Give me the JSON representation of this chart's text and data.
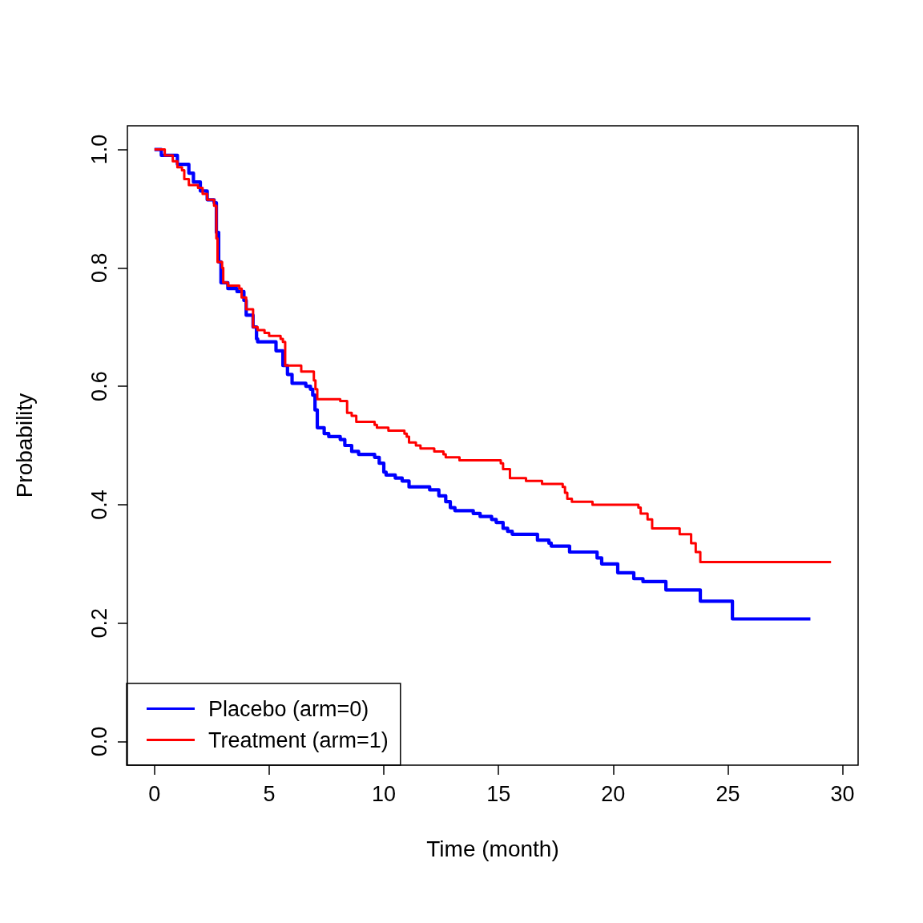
{
  "chart_data": {
    "type": "step",
    "xlabel": "Time (month)",
    "ylabel": "Probability",
    "xlim": [
      -1.18,
      30.68
    ],
    "ylim": [
      -0.04,
      1.04
    ],
    "xticks": [
      0,
      5,
      10,
      15,
      20,
      25,
      30
    ],
    "yticks": [
      {
        "value": 0,
        "label": "0.0"
      },
      {
        "value": 0.2,
        "label": "0.2"
      },
      {
        "value": 0.4,
        "label": "0.4"
      },
      {
        "value": 0.6,
        "label": "0.6"
      },
      {
        "value": 0.8,
        "label": "0.8"
      },
      {
        "value": 1,
        "label": "1.0"
      }
    ],
    "grid": false,
    "legend": "bottom left",
    "series": [
      {
        "name": "Placebo (arm=0)",
        "color": "#0000ff",
        "x": [
          0,
          0.3,
          1,
          1.5,
          1.7,
          2,
          2.3,
          2.6,
          2.7,
          2.8,
          2.9,
          3.2,
          3.6,
          3.9,
          4,
          4.3,
          4.45,
          4.5,
          5.3,
          5.6,
          5.8,
          6,
          6.6,
          6.8,
          6.9,
          7,
          7.1,
          7.4,
          7.6,
          8.1,
          8.3,
          8.6,
          8.9,
          9.6,
          9.8,
          10,
          10.1,
          10.5,
          10.8,
          11.1,
          12,
          12.4,
          12.7,
          12.9,
          13.1,
          13.9,
          14.2,
          14.7,
          14.9,
          15.2,
          15.4,
          15.6,
          16.7,
          17.2,
          17.3,
          18.1,
          19.3,
          19.5,
          20.2,
          20.9,
          21.3,
          22.3,
          23.8,
          25.2,
          28.6
        ],
        "values": [
          1,
          0.99,
          0.975,
          0.96,
          0.945,
          0.93,
          0.915,
          0.91,
          0.86,
          0.81,
          0.775,
          0.765,
          0.76,
          0.745,
          0.72,
          0.7,
          0.68,
          0.675,
          0.66,
          0.635,
          0.62,
          0.605,
          0.6,
          0.595,
          0.585,
          0.56,
          0.53,
          0.52,
          0.515,
          0.51,
          0.5,
          0.49,
          0.485,
          0.48,
          0.47,
          0.455,
          0.45,
          0.445,
          0.44,
          0.43,
          0.425,
          0.415,
          0.405,
          0.395,
          0.39,
          0.385,
          0.38,
          0.375,
          0.37,
          0.36,
          0.355,
          0.35,
          0.34,
          0.335,
          0.33,
          0.32,
          0.31,
          0.3,
          0.285,
          0.275,
          0.27,
          0.256,
          0.237,
          0.207,
          0.207
        ]
      },
      {
        "name": "Treatment (arm=1)",
        "color": "#ff0000",
        "x": [
          0,
          0.45,
          0.8,
          1,
          1.2,
          1.3,
          1.5,
          1.9,
          2.1,
          2.3,
          2.6,
          2.7,
          2.75,
          2.95,
          3,
          3.2,
          3.7,
          3.8,
          4,
          4.3,
          4.5,
          4.8,
          5,
          5.5,
          5.6,
          5.7,
          6.4,
          6.95,
          7.02,
          7.1,
          8.1,
          8.4,
          8.6,
          8.8,
          9.6,
          9.7,
          10.2,
          10.9,
          11,
          11.1,
          11.4,
          11.6,
          12.2,
          12.6,
          12.7,
          13.3,
          15.1,
          15.2,
          15.5,
          16.2,
          16.9,
          17.8,
          17.9,
          18,
          18.2,
          19.1,
          21.1,
          21.2,
          21.5,
          21.7,
          22.9,
          23.4,
          23.6,
          23.8,
          29.5
        ],
        "values": [
          1,
          0.99,
          0.98,
          0.97,
          0.965,
          0.95,
          0.94,
          0.935,
          0.925,
          0.915,
          0.905,
          0.85,
          0.81,
          0.8,
          0.775,
          0.77,
          0.765,
          0.75,
          0.73,
          0.7,
          0.695,
          0.69,
          0.685,
          0.68,
          0.675,
          0.635,
          0.625,
          0.61,
          0.595,
          0.578,
          0.575,
          0.555,
          0.55,
          0.54,
          0.535,
          0.53,
          0.525,
          0.52,
          0.515,
          0.505,
          0.5,
          0.495,
          0.49,
          0.485,
          0.48,
          0.475,
          0.47,
          0.46,
          0.445,
          0.44,
          0.435,
          0.43,
          0.42,
          0.41,
          0.405,
          0.4,
          0.395,
          0.385,
          0.375,
          0.36,
          0.35,
          0.335,
          0.32,
          0.303,
          0.303
        ]
      }
    ]
  }
}
